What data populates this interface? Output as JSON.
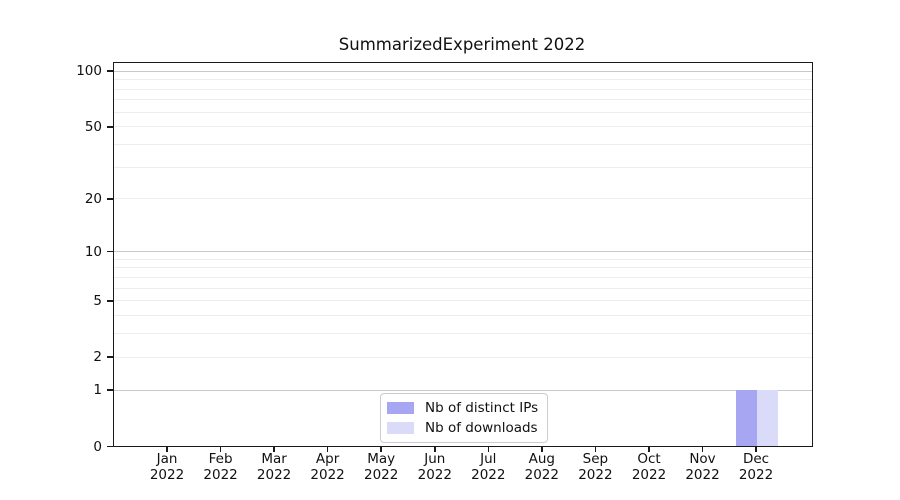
{
  "title": "SummarizedExperiment 2022",
  "chart_data": {
    "type": "bar",
    "title": "SummarizedExperiment 2022",
    "categories": [
      "Jan",
      "Feb",
      "Mar",
      "Apr",
      "May",
      "Jun",
      "Jul",
      "Aug",
      "Sep",
      "Oct",
      "Nov",
      "Dec"
    ],
    "year": "2022",
    "series": [
      {
        "name": "Nb of distinct IPs",
        "color": "#a6a6f2",
        "values": [
          0,
          0,
          0,
          0,
          0,
          0,
          0,
          0,
          0,
          0,
          0,
          1
        ]
      },
      {
        "name": "Nb of downloads",
        "color": "#dadaf9",
        "values": [
          0,
          0,
          0,
          0,
          0,
          0,
          0,
          0,
          0,
          0,
          0,
          1
        ]
      }
    ],
    "yscale": "log1p",
    "ylim": [
      0,
      110
    ],
    "ytick_labels": [
      0,
      1,
      2,
      5,
      10,
      20,
      50,
      100
    ],
    "ygrid_major": [
      1,
      10,
      100
    ],
    "ygrid_minor": [
      2,
      3,
      4,
      5,
      6,
      7,
      8,
      9,
      20,
      30,
      40,
      50,
      60,
      70,
      80,
      90
    ],
    "grid": "horizontal",
    "legend_position": "lower center inside"
  },
  "colors": {
    "background": "#ffffff",
    "text": "#111111",
    "spine": "#1a1a1a",
    "grid_major": "#c9c9c9",
    "grid_minor": "#ededed",
    "legend_border": "#cccccc"
  }
}
